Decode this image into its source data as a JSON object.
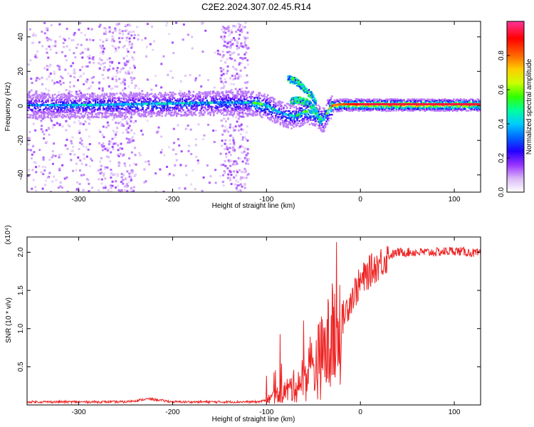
{
  "title": "C2E2.2024.307.02.45.R14",
  "chart_data": [
    {
      "type": "heatmap",
      "xlabel": "Height of straight line (km)",
      "ylabel": "Frequency (Hz)",
      "xlim": [
        -355,
        128
      ],
      "ylim": [
        -50,
        49
      ],
      "xticks": [
        -300,
        -200,
        -100,
        0,
        100
      ],
      "yticks": [
        -40,
        -20,
        0,
        20,
        40
      ],
      "colorbar": {
        "label": "Normalized spectral amplitude",
        "range": [
          0.0,
          1.0
        ],
        "ticks": [
          "0.0",
          "0.2",
          "0.4",
          "0.6",
          "0.8"
        ],
        "colors": [
          "#ffffff",
          "#d9b8f5",
          "#9933ff",
          "#2200ff",
          "#0066ff",
          "#00ccff",
          "#00ff99",
          "#33ff00",
          "#ccff00",
          "#ffcc00",
          "#ff6600",
          "#ff0000",
          "#ff3399"
        ]
      },
      "ridge": {
        "x": [
          -355,
          -300,
          -250,
          -200,
          -150,
          -120,
          -110,
          -100,
          -90,
          -80,
          -70,
          -60,
          -50,
          -45,
          -40,
          -35,
          -30,
          -20,
          -10,
          0,
          50,
          100,
          128
        ],
        "freq": [
          0.5,
          0.5,
          1.0,
          1.5,
          2.0,
          2.0,
          1.5,
          0.0,
          -3.0,
          -5.0,
          -6.0,
          -3.0,
          -4.0,
          -6.0,
          -8.0,
          -2.0,
          0.5,
          1.0,
          1.0,
          1.0,
          1.0,
          1.0,
          1.0
        ],
        "amplitude": [
          0.35,
          0.4,
          0.4,
          0.42,
          0.4,
          0.4,
          0.55,
          0.5,
          0.45,
          0.4,
          0.45,
          0.5,
          0.55,
          0.55,
          0.5,
          0.6,
          0.8,
          0.85,
          0.9,
          0.95,
          0.95,
          0.95,
          0.95
        ]
      },
      "branches": [
        {
          "x": [
            -78,
            -70,
            -60,
            -52,
            -48
          ],
          "freq": [
            16,
            15,
            10,
            6,
            2
          ]
        },
        {
          "x": [
            -75,
            -65,
            -55,
            -48,
            -43
          ],
          "freq": [
            3,
            4,
            2,
            -3,
            -8
          ]
        }
      ]
    },
    {
      "type": "line",
      "xlabel": "Height of straight line (km)",
      "ylabel": "SNR (10 * v/v)",
      "scale_label": "(x10⁴)",
      "xlim": [
        -355,
        128
      ],
      "ylim": [
        0,
        2.2
      ],
      "xticks": [
        -300,
        -200,
        -100,
        0,
        100
      ],
      "yticks": [
        0.5,
        1.0,
        1.5,
        2.0
      ],
      "color": "#ee2222",
      "series": [
        {
          "name": "SNR",
          "x": [
            -355,
            -300,
            -250,
            -225,
            -200,
            -150,
            -110,
            -100,
            -90,
            -80,
            -70,
            -60,
            -50,
            -40,
            -35,
            -30,
            -25,
            -20,
            -15,
            -10,
            -5,
            0,
            10,
            20,
            30,
            40,
            60,
            80,
            100,
            128
          ],
          "y": [
            0.04,
            0.04,
            0.04,
            0.08,
            0.04,
            0.04,
            0.04,
            0.06,
            0.12,
            0.18,
            0.25,
            0.35,
            0.5,
            0.65,
            0.75,
            0.85,
            0.95,
            1.1,
            1.25,
            1.4,
            1.5,
            1.6,
            1.75,
            1.85,
            1.95,
            2.0,
            2.0,
            2.0,
            2.02,
            1.98
          ]
        }
      ]
    }
  ]
}
